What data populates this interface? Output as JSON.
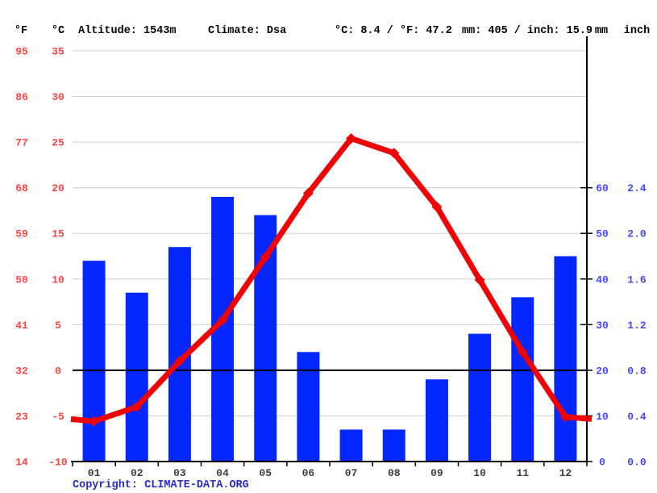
{
  "header": {
    "f_label": "°F",
    "c_label": "°C",
    "altitude": "Altitude: 1543m",
    "climate": "Climate: Dsa",
    "temp_summary": "°C: 8.4 / °F: 47.2",
    "precip_summary": "mm: 405 / inch: 15.9",
    "mm_label": "mm",
    "inch_label": "inch"
  },
  "axes": {
    "temp_f_ticks": [
      "95",
      "86",
      "77",
      "68",
      "59",
      "50",
      "41",
      "32",
      "23",
      "14"
    ],
    "temp_c_ticks": [
      "35",
      "30",
      "25",
      "20",
      "15",
      "10",
      "5",
      "0",
      "-5",
      "-10"
    ],
    "temp_c_values": [
      35,
      30,
      25,
      20,
      15,
      10,
      5,
      0,
      -5,
      -10
    ],
    "precip_mm_ticks": [
      "60",
      "50",
      "40",
      "30",
      "20",
      "10",
      "0"
    ],
    "precip_mm_values": [
      60,
      50,
      40,
      30,
      20,
      10,
      0
    ],
    "precip_inch_ticks": [
      "2.4",
      "2.0",
      "1.6",
      "1.2",
      "0.8",
      "0.4",
      "0.0"
    ]
  },
  "chart_data": {
    "type": "bar",
    "subtype": "climograph (precipitation bars + temperature line)",
    "categories": [
      "01",
      "02",
      "03",
      "04",
      "05",
      "06",
      "07",
      "08",
      "09",
      "10",
      "11",
      "12"
    ],
    "series": [
      {
        "name": "precipitation",
        "type": "bar",
        "unit": "mm",
        "values": [
          44,
          37,
          47,
          58,
          54,
          24,
          7,
          7,
          18,
          28,
          36,
          45
        ]
      },
      {
        "name": "temperature",
        "type": "line",
        "unit": "°C",
        "values": [
          -5.6,
          -4.0,
          1.0,
          5.5,
          12.4,
          19.4,
          25.4,
          23.8,
          17.9,
          9.9,
          2.0,
          -5.1
        ]
      }
    ],
    "temp_axis_c_range": [
      -10,
      35
    ],
    "precip_axis_mm_range": [
      0,
      90
    ],
    "grid": true,
    "zero_line_c": 0,
    "annual_precip_mm": 405,
    "annual_mean_temp_c": 8.4
  },
  "colors": {
    "bar_blue": "#0327fc",
    "line_red": "#ee0405",
    "red_label": "#ff4444",
    "red_header": "#ff2222",
    "blue_label": "#4646ff",
    "blue_header": "#2222ff",
    "month_label": "#3d3d3d",
    "grid": "#cfcfcf",
    "axis": "#000000",
    "copyright_blue": "#2a2acc"
  },
  "footer": {
    "copyright_prefix": "Copyright: ",
    "link": "CLIMATE-DATA.ORG"
  }
}
